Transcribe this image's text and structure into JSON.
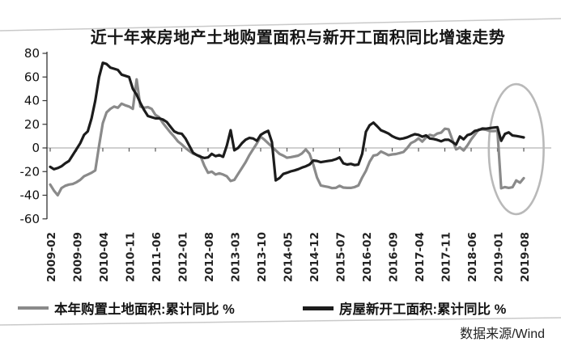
{
  "title": "近十年来房地产土地购置面积与新开工面积同比增速走势",
  "source": "数据来源/Wind",
  "colors": {
    "series_land_purchase": "#8a8a8a",
    "series_new_starts": "#1c1c1c",
    "zero_line": "#b3b3b3",
    "axis": "#333333",
    "highlight_ellipse": "#b9b9b9",
    "rule": "#c9c9c9",
    "background": "#ffffff"
  },
  "legend": [
    {
      "label": "本年购置土地面积:累计同比 %",
      "color": "#8a8a8a"
    },
    {
      "label": "房屋新开工面积:累计同比 %",
      "color": "#1c1c1c"
    }
  ],
  "chart_data": {
    "type": "line",
    "title": "近十年来房地产土地购置面积与新开工面积同比增速走势",
    "x_start": "2009-02",
    "x_end": "2019-08",
    "x_frequency": "monthly",
    "x_tick_every_months": 7,
    "x_tick_labels": [
      "2009-02",
      "2009-09",
      "2010-04",
      "2010-11",
      "2011-06",
      "2012-01",
      "2012-08",
      "2013-03",
      "2013-10",
      "2014-05",
      "2014-12",
      "2015-07",
      "2016-02",
      "2016-09",
      "2017-04",
      "2017-11",
      "2018-06",
      "2019-01",
      "2019-08"
    ],
    "ylabel": "",
    "ylim": [
      -60,
      80
    ],
    "y_ticks": [
      80,
      60,
      40,
      20,
      0,
      -20,
      -40,
      -60
    ],
    "grid": "zero-line-only",
    "legend_position": "bottom",
    "source": "数据来源/Wind",
    "annotation": {
      "shape": "ellipse",
      "purpose": "highlights 2019 divergence between the two series",
      "center_month_index": 124,
      "center_value": -1,
      "radius_months": 7.3,
      "radius_value": 55
    },
    "series": [
      {
        "name": "本年购置土地面积:累计同比 %",
        "color": "#8a8a8a",
        "values": [
          -31,
          -36,
          -40,
          -34,
          -32,
          -31,
          -30.5,
          -29,
          -27,
          -24,
          -22.5,
          -21,
          -19,
          2,
          21,
          30,
          33,
          35,
          34,
          37.5,
          36,
          35,
          33,
          58,
          35,
          34,
          34.5,
          33,
          28,
          26,
          21,
          17,
          13,
          9.5,
          5.5,
          3,
          0,
          -2.5,
          -4.8,
          -6,
          -7,
          -15,
          -21,
          -20,
          -22.5,
          -21.5,
          -22.5,
          -24,
          -28,
          -27,
          -22,
          -17,
          -12,
          -6,
          -1,
          4,
          9.5,
          7,
          4,
          1,
          -2,
          -5,
          -6.5,
          -8.3,
          -7.8,
          -7.2,
          -6.5,
          -4.6,
          -1.2,
          -5,
          -14,
          -25,
          -31.7,
          -32.4,
          -33,
          -34,
          -33.8,
          -32,
          -33.5,
          -33.8,
          -33.8,
          -33.1,
          -31.7,
          -25,
          -19.4,
          -11.7,
          -6.5,
          -5.9,
          -3,
          -4.5,
          -6.1,
          -5.5,
          -5.1,
          -4.3,
          -3.4,
          0,
          4.1,
          5.7,
          8.1,
          5.3,
          8.8,
          11.1,
          10.1,
          12.2,
          12.9,
          16.3,
          15.8,
          7,
          -1.2,
          0.5,
          -2.1,
          2.1,
          7.2,
          11.3,
          15.6,
          15.7,
          15.3,
          14.3,
          14.2,
          14.5,
          -34.1,
          -33.1,
          -33.8,
          -33.2,
          -27.5,
          -29.4,
          -25.6
        ]
      },
      {
        "name": "房屋新开工面积:累计同比 %",
        "color": "#1c1c1c",
        "values": [
          -16,
          -18,
          -17,
          -15.5,
          -13,
          -11,
          -6,
          -1,
          4,
          11,
          14,
          25,
          40,
          60,
          72,
          71,
          68,
          67,
          66,
          62,
          61,
          60,
          50,
          45,
          38,
          32,
          27,
          26,
          25,
          25,
          24,
          22,
          18,
          14,
          12.5,
          12,
          8,
          2,
          -4,
          -6,
          -7.5,
          -8.5,
          -8,
          -5,
          -7,
          -6,
          -7.5,
          2,
          15,
          -2,
          0,
          4,
          7,
          8.5,
          8,
          6,
          11,
          13,
          14.5,
          5,
          -27.4,
          -25.5,
          -22,
          -21,
          -19.8,
          -19,
          -18,
          -16.6,
          -15.5,
          -14,
          -10.7,
          -11,
          -12,
          -11.5,
          -11,
          -10.5,
          -9.5,
          -8,
          -13,
          -14,
          -13.5,
          -14.5,
          -14,
          -5,
          13.7,
          19.2,
          21.4,
          18.3,
          15,
          13.7,
          12.2,
          10,
          8.5,
          7.6,
          8.1,
          9,
          10.4,
          11.6,
          11.1,
          9.5,
          10.6,
          8,
          7.6,
          6.8,
          5.6,
          6.9,
          7,
          5,
          2.9,
          9.7,
          7.3,
          10.8,
          11.8,
          14.4,
          15.1,
          16.4,
          16.3,
          16.8,
          17.2,
          17.5,
          6,
          11.9,
          13.1,
          10.5,
          10.1,
          9.5,
          8.9
        ]
      }
    ]
  }
}
